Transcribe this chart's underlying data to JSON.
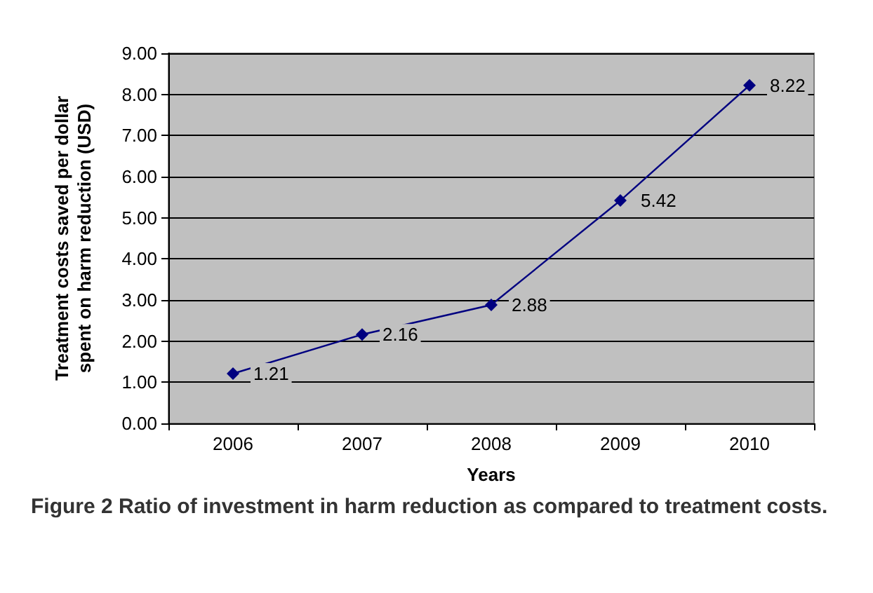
{
  "chart_data": {
    "type": "line",
    "xlabel": "Years",
    "ylabel": "Treatment costs saved per dollar spent on harm reduction (USD)",
    "categories": [
      "2006",
      "2007",
      "2008",
      "2009",
      "2010"
    ],
    "series": [
      {
        "color": "#000080",
        "values": [
          1.21,
          2.16,
          2.88,
          5.42,
          8.22
        ]
      }
    ],
    "ylim": [
      0,
      9
    ],
    "yticks": [
      {
        "value": 0,
        "label": "0.00"
      },
      {
        "value": 1,
        "label": "1.00"
      },
      {
        "value": 2,
        "label": "2.00"
      },
      {
        "value": 3,
        "label": "3.00"
      },
      {
        "value": 4,
        "label": "4.00"
      },
      {
        "value": 5,
        "label": "5.00"
      },
      {
        "value": 6,
        "label": "6.00"
      },
      {
        "value": 7,
        "label": "7.00"
      },
      {
        "value": 8,
        "label": "8.00"
      },
      {
        "value": 9,
        "label": "9.00"
      }
    ],
    "grid": "y",
    "marker": "diamond",
    "line_style": "solid",
    "data_labels": true,
    "annotations": [
      "Figure 2 Ratio of investment in harm reduction as compared to treatment costs."
    ]
  }
}
